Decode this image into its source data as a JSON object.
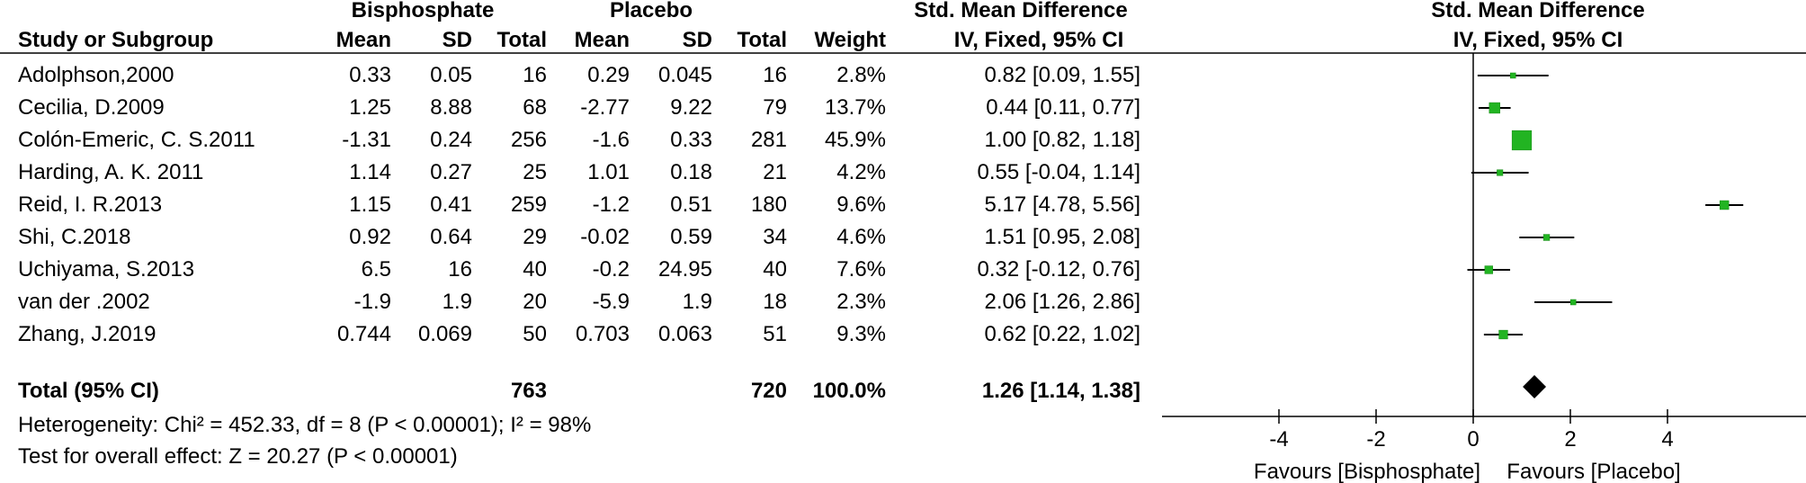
{
  "header": {
    "group1": "Bisphosphate",
    "group2": "Placebo",
    "effect_title": "Std. Mean Difference",
    "plot_title": "Std. Mean Difference",
    "plot_method": "IV, Fixed, 95% CI",
    "columns": {
      "study": "Study or Subgroup",
      "mean1": "Mean",
      "sd1": "SD",
      "total1": "Total",
      "mean2": "Mean",
      "sd2": "SD",
      "total2": "Total",
      "weight": "Weight",
      "ci": "IV, Fixed, 95% CI"
    }
  },
  "rows": [
    {
      "study": "Adolphson,2000",
      "mean1": "0.33",
      "sd1": "0.05",
      "total1": "16",
      "mean2": "0.29",
      "sd2": "0.045",
      "total2": "16",
      "weight": "2.8%",
      "ci": "0.82 [0.09, 1.55]"
    },
    {
      "study": "Cecilia, D.2009",
      "mean1": "1.25",
      "sd1": "8.88",
      "total1": "68",
      "mean2": "-2.77",
      "sd2": "9.22",
      "total2": "79",
      "weight": "13.7%",
      "ci": "0.44 [0.11, 0.77]"
    },
    {
      "study": "Colón-Emeric, C. S.2011",
      "mean1": "-1.31",
      "sd1": "0.24",
      "total1": "256",
      "mean2": "-1.6",
      "sd2": "0.33",
      "total2": "281",
      "weight": "45.9%",
      "ci": "1.00 [0.82, 1.18]"
    },
    {
      "study": "Harding, A. K. 2011",
      "mean1": "1.14",
      "sd1": "0.27",
      "total1": "25",
      "mean2": "1.01",
      "sd2": "0.18",
      "total2": "21",
      "weight": "4.2%",
      "ci": "0.55 [-0.04, 1.14]"
    },
    {
      "study": "Reid, I. R.2013",
      "mean1": "1.15",
      "sd1": "0.41",
      "total1": "259",
      "mean2": "-1.2",
      "sd2": "0.51",
      "total2": "180",
      "weight": "9.6%",
      "ci": "5.17 [4.78, 5.56]"
    },
    {
      "study": "Shi, C.2018",
      "mean1": "0.92",
      "sd1": "0.64",
      "total1": "29",
      "mean2": "-0.02",
      "sd2": "0.59",
      "total2": "34",
      "weight": "4.6%",
      "ci": "1.51 [0.95, 2.08]"
    },
    {
      "study": "Uchiyama, S.2013",
      "mean1": "6.5",
      "sd1": "16",
      "total1": "40",
      "mean2": "-0.2",
      "sd2": "24.95",
      "total2": "40",
      "weight": "7.6%",
      "ci": "0.32 [-0.12, 0.76]"
    },
    {
      "study": "van der .2002",
      "mean1": "-1.9",
      "sd1": "1.9",
      "total1": "20",
      "mean2": "-5.9",
      "sd2": "1.9",
      "total2": "18",
      "weight": "2.3%",
      "ci": "2.06 [1.26, 2.86]"
    },
    {
      "study": "Zhang, J.2019",
      "mean1": "0.744",
      "sd1": "0.069",
      "total1": "50",
      "mean2": "0.703",
      "sd2": "0.063",
      "total2": "51",
      "weight": "9.3%",
      "ci": "0.62 [0.22, 1.02]"
    }
  ],
  "total": {
    "label": "Total (95% CI)",
    "total1": "763",
    "total2": "720",
    "weight": "100.0%",
    "ci": "1.26 [1.14, 1.38]"
  },
  "footer": {
    "heterogeneity": "Heterogeneity: Chi² = 452.33, df = 8 (P < 0.00001); I² = 98%",
    "overall": "Test for overall effect: Z = 20.27 (P < 0.00001)"
  },
  "chart_data": {
    "type": "scatter",
    "title": "Std. Mean Difference",
    "subtitle": "IV, Fixed, 95% CI",
    "xlim": [
      -6.5,
      6.5
    ],
    "xticks": [
      -4,
      -2,
      0,
      2,
      4
    ],
    "xtick_labels": [
      "-4",
      "-2",
      "0",
      "2",
      "4"
    ],
    "left_label": "Favours [Bisphosphate]",
    "right_label": "Favours [Placebo]",
    "colors": {
      "marker": "#22b422",
      "marker_edge": "#118811",
      "line": "#000000"
    },
    "points": [
      {
        "estimate": 0.82,
        "lower": 0.09,
        "upper": 1.55,
        "weight": 2.8
      },
      {
        "estimate": 0.44,
        "lower": 0.11,
        "upper": 0.77,
        "weight": 13.7
      },
      {
        "estimate": 1.0,
        "lower": 0.82,
        "upper": 1.18,
        "weight": 45.9
      },
      {
        "estimate": 0.55,
        "lower": -0.04,
        "upper": 1.14,
        "weight": 4.2
      },
      {
        "estimate": 5.17,
        "lower": 4.78,
        "upper": 5.56,
        "weight": 9.6
      },
      {
        "estimate": 1.51,
        "lower": 0.95,
        "upper": 2.08,
        "weight": 4.6
      },
      {
        "estimate": 0.32,
        "lower": -0.12,
        "upper": 0.76,
        "weight": 7.6
      },
      {
        "estimate": 2.06,
        "lower": 1.26,
        "upper": 2.86,
        "weight": 2.3
      },
      {
        "estimate": 0.62,
        "lower": 0.22,
        "upper": 1.02,
        "weight": 9.3
      }
    ],
    "pooled": {
      "estimate": 1.26,
      "lower": 1.14,
      "upper": 1.38
    }
  }
}
